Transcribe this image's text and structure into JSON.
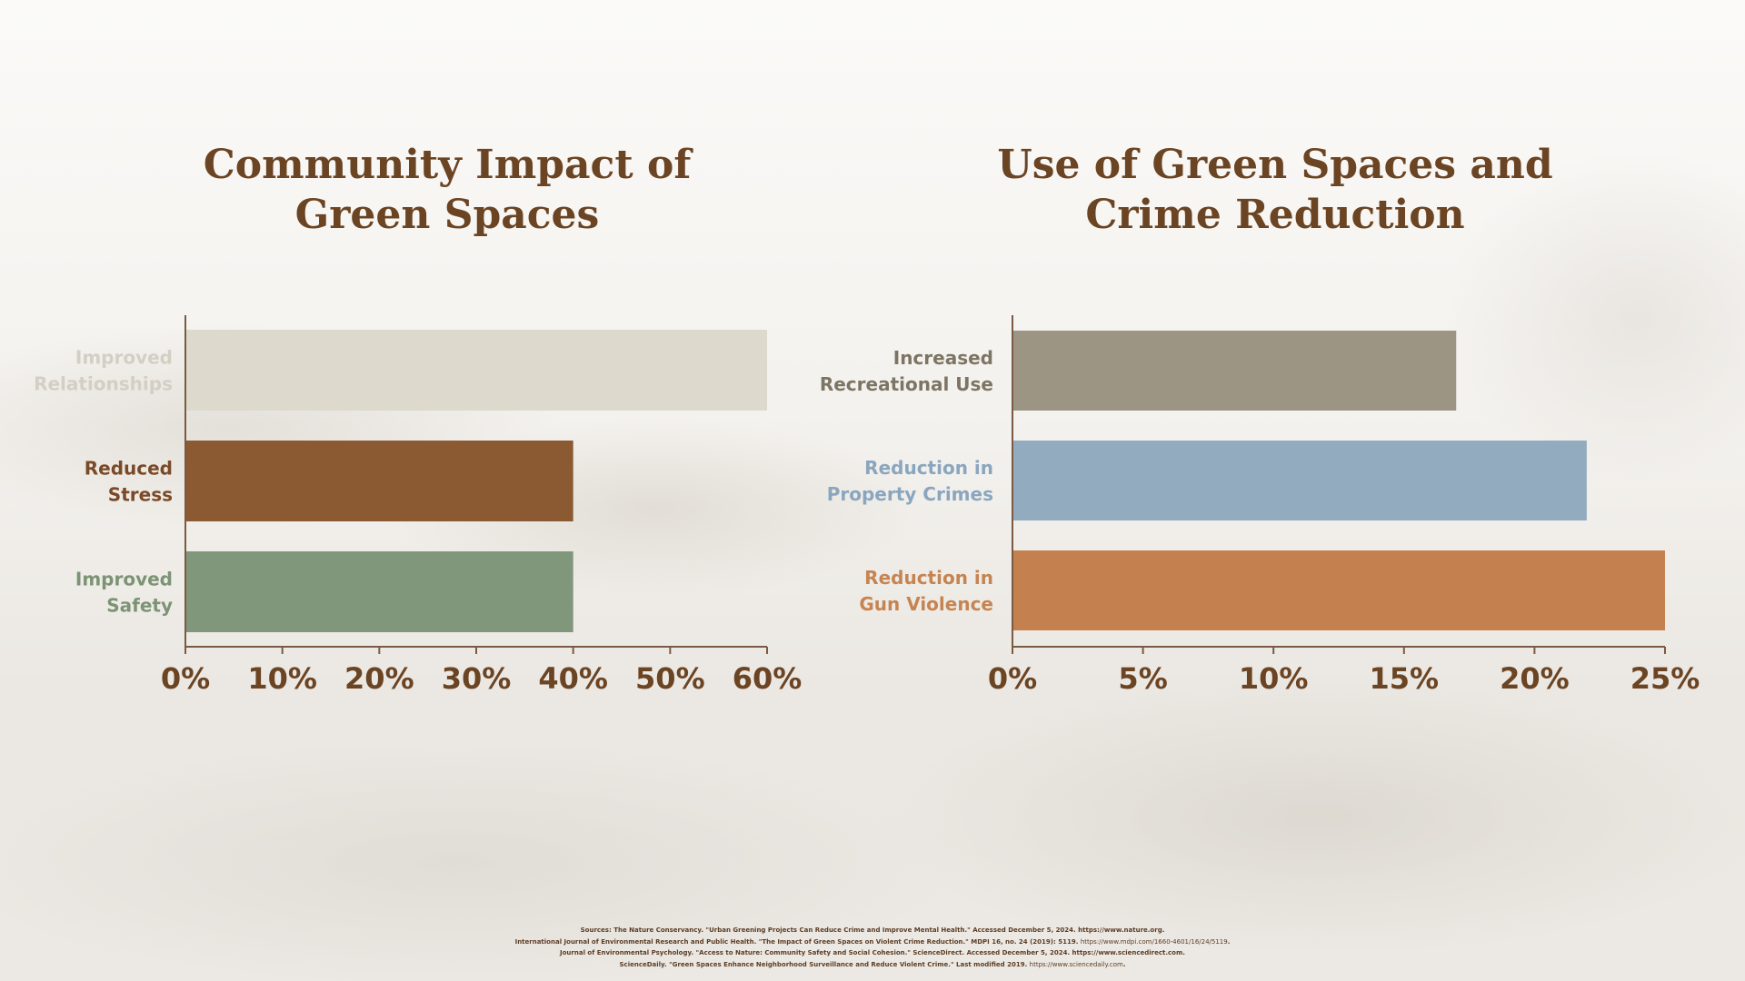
{
  "chart_data": [
    {
      "type": "bar",
      "orientation": "horizontal",
      "title_lines": [
        "Community Impact of",
        "Green Spaces"
      ],
      "categories": [
        [
          "Improved",
          "Relationships"
        ],
        [
          "Reduced",
          "Stress"
        ],
        [
          "Improved",
          "Safety"
        ]
      ],
      "values": [
        60,
        40,
        40
      ],
      "colors": [
        "#ddd9cd",
        "#8b5a33",
        "#80977b"
      ],
      "label_colors": [
        "#d3cfc4",
        "#7a4a28",
        "#7c9475"
      ],
      "xlim": [
        0,
        60
      ],
      "ticks": [
        0,
        10,
        20,
        30,
        40,
        50,
        60
      ],
      "tick_labels": [
        "0%",
        "10%",
        "20%",
        "30%",
        "40%",
        "50%",
        "60%"
      ],
      "grid": false
    },
    {
      "type": "bar",
      "orientation": "horizontal",
      "title_lines": [
        "Use of Green Spaces and",
        "Crime Reduction"
      ],
      "categories": [
        [
          "Increased",
          "Recreational Use"
        ],
        [
          "Reduction in",
          "Property Crimes"
        ],
        [
          "Reduction in",
          "Gun Violence"
        ]
      ],
      "values": [
        17,
        22,
        25
      ],
      "colors": [
        "#9d9584",
        "#92abbf",
        "#c4804e"
      ],
      "label_colors": [
        "#7d7564",
        "#8aa6be",
        "#c68452"
      ],
      "xlim": [
        0,
        25
      ],
      "ticks": [
        0,
        5,
        10,
        15,
        20,
        25
      ],
      "tick_labels": [
        "0%",
        "5%",
        "10%",
        "15%",
        "20%",
        "25%"
      ],
      "grid": false
    }
  ],
  "sources": {
    "line1_text": "Sources: The Nature Conservancy. \"Urban Greening Projects Can Reduce Crime and Improve Mental Health.\" Accessed December 5, 2024.",
    "line1_link": "https://www.nature.org",
    "line2_text": "International Journal of Environmental Research and Public Health. \"The Impact of Green Spaces on Violent Crime Reduction.\" MDPI 16, no. 24 (2019): 5119.",
    "line2_link": "https://www.mdpi.com/1660-4601/16/24/5119",
    "line3_text": "Journal of Environmental Psychology. \"Access to Nature: Community Safety and Social Cohesion.\" ScienceDirect. Accessed December 5, 2024.",
    "line3_link": "https://www.sciencedirect.com",
    "line4_text": "ScienceDaily. \"Green Spaces Enhance Neighborhood Surveillance and Reduce Violent Crime.\" Last modified 2019.",
    "line4_link": "https://www.sciencedaily.com"
  }
}
